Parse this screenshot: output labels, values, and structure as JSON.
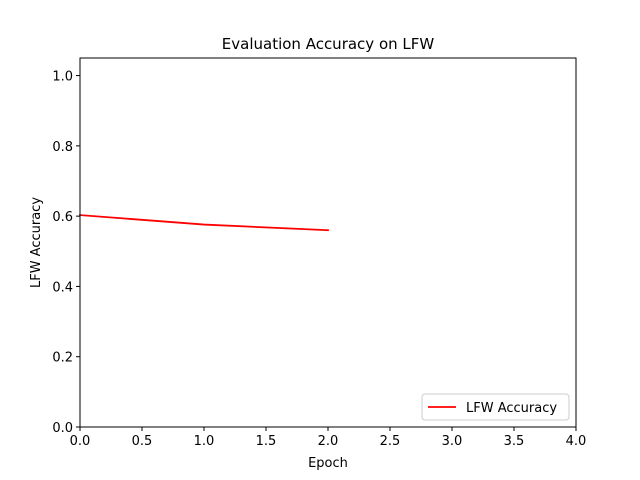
{
  "chart_data": {
    "type": "line",
    "title": "Evaluation Accuracy on LFW",
    "xlabel": "Epoch",
    "ylabel": "LFW Accuracy",
    "xlim": [
      0.0,
      4.0
    ],
    "ylim": [
      0.0,
      1.05
    ],
    "xticks": [
      "0.0",
      "0.5",
      "1.0",
      "1.5",
      "2.0",
      "2.5",
      "3.0",
      "3.5",
      "4.0"
    ],
    "yticks": [
      "0.0",
      "0.2",
      "0.4",
      "0.6",
      "0.8",
      "1.0"
    ],
    "grid": false,
    "legend_position": "lower-right",
    "series": [
      {
        "name": "LFW Accuracy",
        "color": "#ff0000",
        "x": [
          0,
          1,
          2
        ],
        "y": [
          0.603,
          0.576,
          0.56
        ]
      }
    ]
  }
}
